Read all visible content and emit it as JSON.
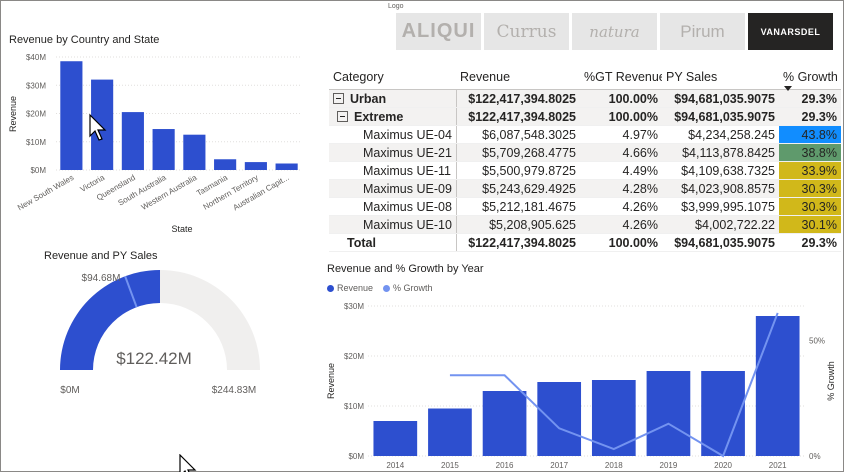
{
  "colors": {
    "bar": "#2d4fcf",
    "accent_light": "#7393f0",
    "gauge_bg": "#f0efee",
    "cf_blue": "#118dff",
    "cf_green": "#5f9a6c",
    "cf_gold": "#d1b81a"
  },
  "bar_chart": {
    "title": "Revenue by Country and State",
    "xlabel": "State",
    "ylabel": "Revenue",
    "yticks": [
      "$0M",
      "$10M",
      "$20M",
      "$30M",
      "$40M"
    ]
  },
  "gauge": {
    "title": "Revenue and PY Sales",
    "value_label": "$122.42M",
    "target_label": "$94.68M",
    "min_label": "$0M",
    "max_label": "$244.83M"
  },
  "logos": {
    "label": "Logo",
    "items": [
      {
        "name": "ALIQUI",
        "icon": "aliqui-logo",
        "selected": false
      },
      {
        "name": "Currus",
        "icon": "currus-logo",
        "selected": false
      },
      {
        "name": "natura",
        "icon": "natura-logo",
        "selected": false
      },
      {
        "name": "Pirum",
        "icon": "pirum-logo",
        "selected": false
      },
      {
        "name": "VANARSDEL",
        "icon": "vanarsdel-logo",
        "selected": true
      }
    ]
  },
  "matrix": {
    "headers": [
      "Category",
      "Revenue",
      "%GT Revenue",
      "PY Sales",
      "% Growth"
    ],
    "rows": [
      {
        "label": "Urban",
        "level": 0,
        "bold": true,
        "shade": true,
        "expand": true,
        "revenue": "$122,417,394.8025",
        "gt": "100.00%",
        "py": "$94,681,035.9075",
        "growth": "29.3%",
        "cf": ""
      },
      {
        "label": "Extreme",
        "level": 1,
        "bold": true,
        "shade": true,
        "expand": true,
        "revenue": "$122,417,394.8025",
        "gt": "100.00%",
        "py": "$94,681,035.9075",
        "growth": "29.3%",
        "cf": ""
      },
      {
        "label": "Maximus UE-04",
        "level": 2,
        "bold": false,
        "shade": false,
        "expand": false,
        "revenue": "$6,087,548.3025",
        "gt": "4.97%",
        "py": "$4,234,258.245",
        "growth": "43.8%",
        "cf": "cf_blue"
      },
      {
        "label": "Maximus UE-21",
        "level": 2,
        "bold": false,
        "shade": true,
        "expand": false,
        "revenue": "$5,709,268.4775",
        "gt": "4.66%",
        "py": "$4,113,878.8425",
        "growth": "38.8%",
        "cf": "cf_green"
      },
      {
        "label": "Maximus UE-11",
        "level": 2,
        "bold": false,
        "shade": false,
        "expand": false,
        "revenue": "$5,500,979.8725",
        "gt": "4.49%",
        "py": "$4,109,638.7325",
        "growth": "33.9%",
        "cf": "cf_gold"
      },
      {
        "label": "Maximus UE-09",
        "level": 2,
        "bold": false,
        "shade": true,
        "expand": false,
        "revenue": "$5,243,629.4925",
        "gt": "4.28%",
        "py": "$4,023,908.8575",
        "growth": "30.3%",
        "cf": "cf_gold"
      },
      {
        "label": "Maximus UE-08",
        "level": 2,
        "bold": false,
        "shade": false,
        "expand": false,
        "revenue": "$5,212,181.4675",
        "gt": "4.26%",
        "py": "$3,999,995.1075",
        "growth": "30.3%",
        "cf": "cf_gold"
      },
      {
        "label": "Maximus UE-10",
        "level": 2,
        "bold": false,
        "shade": true,
        "expand": false,
        "revenue": "$5,208,905.625",
        "gt": "4.26%",
        "py": "$4,002,722.22",
        "growth": "30.1%",
        "cf": "cf_gold"
      }
    ],
    "total": {
      "label": "Total",
      "revenue": "$122,417,394.8025",
      "gt": "100.00%",
      "py": "$94,681,035.9075",
      "growth": "29.3%"
    }
  },
  "combo": {
    "title": "Revenue and % Growth by Year",
    "legend": [
      "Revenue",
      "% Growth"
    ],
    "ylabel": "Revenue",
    "y2label": "% Growth",
    "yticks": [
      "$0M",
      "$10M",
      "$20M",
      "$30M"
    ],
    "y2ticks": [
      "0%",
      "50%"
    ]
  },
  "chart_data": [
    {
      "type": "bar",
      "title": "Revenue by Country and State",
      "xlabel": "State",
      "ylabel": "Revenue",
      "ylim": [
        0,
        40
      ],
      "unit": "$M",
      "categories": [
        "New South Wales",
        "Victoria",
        "Queensland",
        "South Australia",
        "Western Australia",
        "Tasmania",
        "Northern Territory",
        "Australian Capit..."
      ],
      "values": [
        38.5,
        32,
        20.5,
        14.5,
        12.5,
        3.8,
        2.8,
        2.3
      ],
      "grid": true
    },
    {
      "type": "gauge",
      "title": "Revenue and PY Sales",
      "value": 122.42,
      "target": 94.68,
      "min": 0,
      "max": 244.83,
      "unit": "$M"
    },
    {
      "type": "bar+line",
      "title": "Revenue and % Growth by Year",
      "categories": [
        "2014",
        "2015",
        "2016",
        "2017",
        "2018",
        "2019",
        "2020",
        "2021"
      ],
      "series": [
        {
          "name": "Revenue",
          "type": "bar",
          "unit": "$M",
          "values": [
            7,
            9.5,
            13,
            14.8,
            15.2,
            17,
            17,
            28
          ]
        },
        {
          "name": "% Growth",
          "type": "line",
          "unit": "%",
          "values": [
            null,
            35,
            35,
            12,
            3,
            14,
            0,
            62
          ]
        }
      ],
      "ylim": [
        0,
        30
      ],
      "y2lim": [
        0,
        65
      ],
      "legend": "top-left",
      "grid": true
    }
  ]
}
